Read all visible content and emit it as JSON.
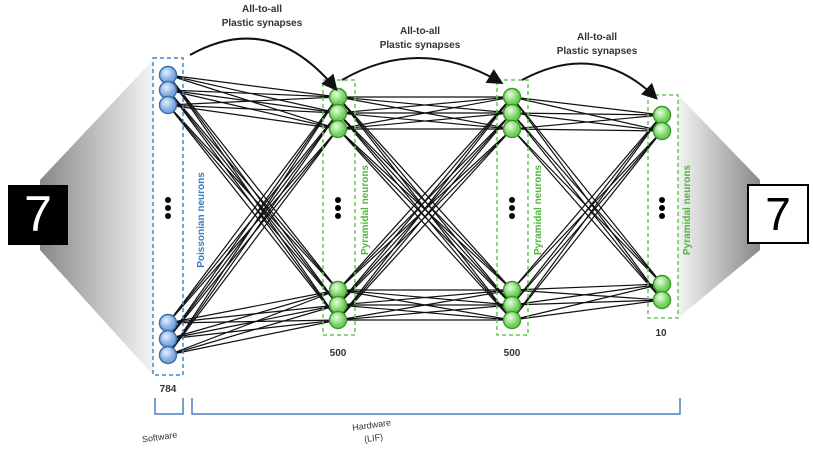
{
  "input_digit": "7",
  "output_digit": "7",
  "synapse_labels": [
    {
      "line1": "All-to-all",
      "line2": "Plastic synapses"
    },
    {
      "line1": "All-to-all",
      "line2": "Plastic synapses"
    },
    {
      "line1": "All-to-all",
      "line2": "Plastic synapses"
    }
  ],
  "layers": [
    {
      "label": "Poissonian neurons",
      "count": 784
    },
    {
      "label": "Pyramidal neurons",
      "count": 500
    },
    {
      "label": "Pyramidal neurons",
      "count": 500
    },
    {
      "label": "Pyramidal neurons",
      "count": 10
    }
  ],
  "brackets": {
    "software": "Software",
    "hardware": {
      "line1": "Hardware",
      "line2": "(LIF)"
    }
  }
}
